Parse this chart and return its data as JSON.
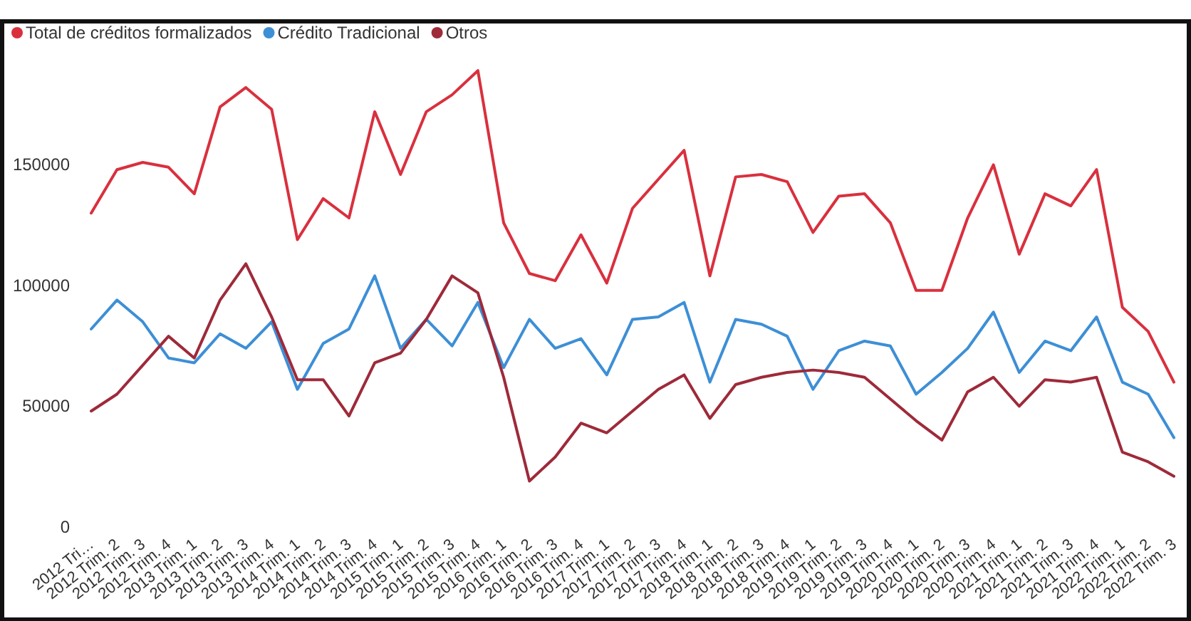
{
  "chart_data": {
    "type": "line",
    "categories": [
      "2012 Tri…",
      "2012 Trim. 2",
      "2012 Trim. 3",
      "2012 Trim. 4",
      "2013 Trim. 1",
      "2013 Trim. 2",
      "2013 Trim. 3",
      "2013 Trim. 4",
      "2014 Trim. 1",
      "2014 Trim. 2",
      "2014 Trim. 3",
      "2014 Trim. 4",
      "2015 Trim. 1",
      "2015 Trim. 2",
      "2015 Trim. 3",
      "2015 Trim. 4",
      "2016 Trim. 1",
      "2016 Trim. 2",
      "2016 Trim. 3",
      "2016 Trim. 4",
      "2017 Trim. 1",
      "2017 Trim. 2",
      "2017 Trim. 3",
      "2017 Trim. 4",
      "2018 Trim. 1",
      "2018 Trim. 2",
      "2018 Trim. 3",
      "2018 Trim. 4",
      "2019 Trim. 1",
      "2019 Trim. 2",
      "2019 Trim. 3",
      "2019 Trim. 4",
      "2020 Trim. 1",
      "2020 Trim. 2",
      "2020 Trim. 3",
      "2020 Trim. 4",
      "2021 Trim. 1",
      "2021 Trim. 2",
      "2021 Trim. 3",
      "2021 Trim. 4",
      "2022 Trim. 1",
      "2022 Trim. 2",
      "2022 Trim. 3"
    ],
    "series": [
      {
        "name": "Total de créditos formalizados",
        "color": "#d9303e",
        "values": [
          130000,
          148000,
          151000,
          149000,
          138000,
          174000,
          182000,
          173000,
          119000,
          136000,
          128000,
          172000,
          146000,
          172000,
          179000,
          189000,
          126000,
          105000,
          102000,
          121000,
          101000,
          132000,
          144000,
          156000,
          104000,
          145000,
          146000,
          143000,
          122000,
          137000,
          138000,
          126000,
          98000,
          98000,
          128000,
          150000,
          113000,
          138000,
          133000,
          148000,
          91000,
          81000,
          60000
        ]
      },
      {
        "name": "Crédito Tradicional",
        "color": "#3d8fd6",
        "values": [
          82000,
          94000,
          85000,
          70000,
          68000,
          80000,
          74000,
          85000,
          57000,
          76000,
          82000,
          104000,
          74000,
          86000,
          75000,
          93000,
          66000,
          86000,
          74000,
          78000,
          63000,
          86000,
          87000,
          93000,
          60000,
          86000,
          84000,
          79000,
          57000,
          73000,
          77000,
          75000,
          55000,
          64000,
          74000,
          89000,
          64000,
          77000,
          73000,
          87000,
          60000,
          55000,
          37000
        ]
      },
      {
        "name": "Otros",
        "color": "#9e2a3a",
        "values": [
          48000,
          55000,
          67000,
          79000,
          70000,
          94000,
          109000,
          87000,
          61000,
          61000,
          46000,
          68000,
          72000,
          86000,
          104000,
          97000,
          62000,
          19000,
          29000,
          43000,
          39000,
          48000,
          57000,
          63000,
          45000,
          59000,
          62000,
          64000,
          65000,
          64000,
          62000,
          53000,
          44000,
          36000,
          56000,
          62000,
          50000,
          61000,
          60000,
          62000,
          31000,
          27000,
          21000
        ]
      }
    ],
    "ylim": [
      0,
      210000
    ],
    "yticks": [
      0,
      50000,
      100000,
      150000
    ],
    "legend": "top left",
    "grid": false,
    "line_style": "solid"
  }
}
